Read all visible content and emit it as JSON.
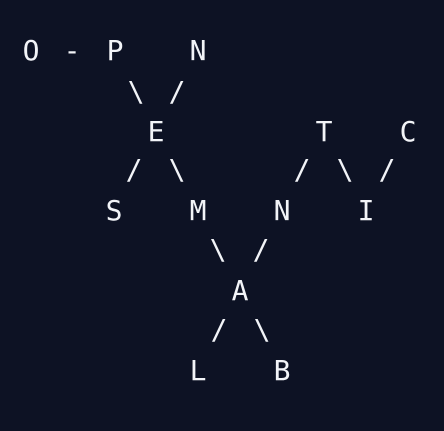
{
  "colors": {
    "background": "#0d1224",
    "foreground": "#f2f4f8"
  },
  "diagram": {
    "row1": {
      "o": "O",
      "dash": "-",
      "p": "P",
      "n": "N"
    },
    "row2": {
      "left_slash": "\\",
      "right_slash": "/"
    },
    "row3": {
      "e": "E",
      "t": "T",
      "c": "C"
    },
    "row4": {
      "slash_1": "/",
      "backslash_1": "\\",
      "slash_2": "/",
      "backslash_2": "\\",
      "slash_3": "/"
    },
    "row5": {
      "s": "S",
      "m": "M",
      "n": "N",
      "i": "I"
    },
    "row6": {
      "backslash": "\\",
      "slash": "/"
    },
    "row7": {
      "a": "A"
    },
    "row8": {
      "slash": "/",
      "backslash": "\\"
    },
    "row9": {
      "l": "L",
      "b": "B"
    }
  }
}
